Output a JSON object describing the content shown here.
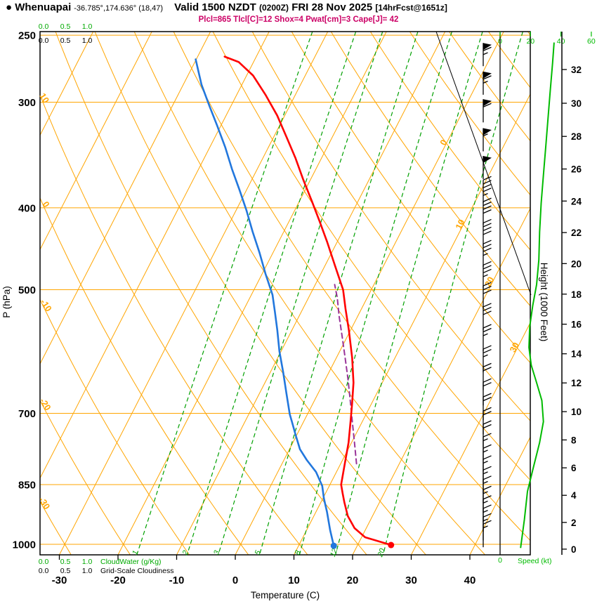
{
  "header": {
    "bullet": "●",
    "station": "Whenuapai",
    "coords": "-36.785°,174.636° (18,47)",
    "valid_label": "Valid 1500 NZDT",
    "valid_z": "(0200Z)",
    "valid_date": "FRI 28 Nov 2025",
    "fcst_tag": "[14hrFcst@1651z]",
    "params": "Plcl=865 Tlcl[C]=12 Shox=4 Pwat[cm]=3 Cape[J]= 42"
  },
  "colors": {
    "grid_orange": "#FFA500",
    "mixing_green": "#00A000",
    "cloud_green": "#00AA00",
    "speed_green": "#00BB00",
    "temperature_red": "#FF0000",
    "dewpoint_blue": "#2277DD",
    "parcel_purple": "#993399",
    "params_magenta": "#CC0066",
    "axis_black": "#000000"
  },
  "axes": {
    "pressure_label": "P (hPa)",
    "temperature_label": "Temperature (C)",
    "height_label": "Height (1000 Feet)",
    "speed_label": "Speed (kt)",
    "cloudwater_label": "CloudWater (g/Kg)",
    "cloudiness_label": "Grid-Scale Cloudiness"
  },
  "chart_data": {
    "type": "skewt-log-p-sounding",
    "pressure_ticks_hpa": [
      250,
      300,
      400,
      500,
      700,
      850,
      1000
    ],
    "temperature_ticks_c": [
      -30,
      -20,
      -10,
      0,
      10,
      20,
      30,
      40
    ],
    "height_ticks_kft": [
      0,
      2,
      4,
      6,
      8,
      10,
      12,
      14,
      16,
      18,
      20,
      22,
      24,
      26,
      28,
      30,
      32
    ],
    "speed_ticks_kt": [
      0,
      20,
      40,
      60
    ],
    "cloud_scale_ticks": [
      "0.0",
      "0.5",
      "1.0"
    ],
    "isotherm_inline_labels": [
      {
        "value": 0,
        "p": 336
      },
      {
        "value": 10,
        "p": 420
      },
      {
        "value": 20,
        "p": 491
      },
      {
        "value": 30,
        "p": 587
      }
    ],
    "dry_adiabat_inline_labels": [
      {
        "value": 10,
        "p": 298
      },
      {
        "value": 0,
        "p": 398
      },
      {
        "value": -10,
        "p": 524
      },
      {
        "value": -20,
        "p": 686
      },
      {
        "value": -30,
        "p": 898
      }
    ],
    "mixing_ratio_lines_gkg": [
      1,
      2,
      3,
      5,
      8,
      12,
      20
    ],
    "temperature_profile_c": [
      [
        1002,
        25.7
      ],
      [
        981,
        20.6
      ],
      [
        957,
        18.0
      ],
      [
        926,
        15.8
      ],
      [
        892,
        14.0
      ],
      [
        870,
        12.9
      ],
      [
        850,
        11.9
      ],
      [
        803,
        10.7
      ],
      [
        758,
        9.5
      ],
      [
        716,
        8.0
      ],
      [
        682,
        6.7
      ],
      [
        644,
        5.1
      ],
      [
        602,
        2.7
      ],
      [
        558,
        -0.3
      ],
      [
        527,
        -2.7
      ],
      [
        500,
        -4.8
      ],
      [
        470,
        -8.1
      ],
      [
        439,
        -11.7
      ],
      [
        415,
        -14.8
      ],
      [
        392,
        -18.0
      ],
      [
        370,
        -21.3
      ],
      [
        349,
        -24.5
      ],
      [
        330,
        -27.8
      ],
      [
        311,
        -31.3
      ],
      [
        294,
        -35.1
      ],
      [
        279,
        -38.9
      ],
      [
        269,
        -42.5
      ],
      [
        265,
        -45.4
      ]
    ],
    "dewpoint_profile_c": [
      [
        1004,
        16.0
      ],
      [
        962,
        14.0
      ],
      [
        916,
        11.9
      ],
      [
        883,
        10.2
      ],
      [
        853,
        8.8
      ],
      [
        821,
        6.5
      ],
      [
        795,
        3.9
      ],
      [
        772,
        1.8
      ],
      [
        744,
        -0.1
      ],
      [
        716,
        -2.0
      ],
      [
        702,
        -3.0
      ],
      [
        663,
        -5.4
      ],
      [
        626,
        -7.8
      ],
      [
        591,
        -10.3
      ],
      [
        558,
        -12.5
      ],
      [
        531,
        -14.5
      ],
      [
        507,
        -16.4
      ],
      [
        479,
        -19.4
      ],
      [
        452,
        -22.3
      ],
      [
        427,
        -25.3
      ],
      [
        403,
        -28.2
      ],
      [
        381,
        -31.2
      ],
      [
        360,
        -34.3
      ],
      [
        339,
        -37.4
      ],
      [
        320,
        -40.6
      ],
      [
        303,
        -43.7
      ],
      [
        286,
        -46.9
      ],
      [
        274,
        -48.9
      ],
      [
        267,
        -50.1
      ]
    ],
    "parcel_path_c": [
      [
        803,
        12.7
      ],
      [
        758,
        10.5
      ],
      [
        716,
        8.3
      ],
      [
        676,
        6.1
      ],
      [
        637,
        3.8
      ],
      [
        602,
        1.5
      ],
      [
        569,
        -0.8
      ],
      [
        537,
        -3.2
      ],
      [
        511,
        -5.1
      ],
      [
        493,
        -6.7
      ]
    ],
    "surface_dots": {
      "temperature": [
        1002,
        25.7
      ],
      "dewpoint": [
        1004,
        16.0
      ]
    },
    "wind_barbs_kt": [
      [
        272,
        65
      ],
      [
        294,
        65
      ],
      [
        317,
        60
      ],
      [
        343,
        55
      ],
      [
        370,
        50
      ],
      [
        395,
        45
      ],
      [
        419,
        40
      ],
      [
        444,
        40
      ],
      [
        470,
        35
      ],
      [
        498,
        35
      ],
      [
        527,
        30
      ],
      [
        558,
        30
      ],
      [
        591,
        25
      ],
      [
        626,
        25
      ],
      [
        657,
        20
      ],
      [
        685,
        20
      ],
      [
        713,
        20
      ],
      [
        741,
        20
      ],
      [
        768,
        20
      ],
      [
        795,
        15
      ],
      [
        820,
        15
      ],
      [
        845,
        15
      ],
      [
        870,
        15
      ],
      [
        893,
        15
      ],
      [
        918,
        15
      ],
      [
        942,
        15
      ],
      [
        966,
        15
      ],
      [
        989,
        15
      ],
      [
        1008,
        15
      ]
    ],
    "wind_speed_profile_kt": [
      [
        1010,
        13.5
      ],
      [
        935,
        16
      ],
      [
        866,
        18
      ],
      [
        810,
        22
      ],
      [
        758,
        26
      ],
      [
        716,
        28.5
      ],
      [
        676,
        27.5
      ],
      [
        644,
        24
      ],
      [
        614,
        20.5
      ],
      [
        585,
        19
      ],
      [
        553,
        19.5
      ],
      [
        522,
        21.5
      ],
      [
        493,
        24
      ],
      [
        461,
        25.5
      ],
      [
        427,
        26
      ],
      [
        395,
        27
      ],
      [
        366,
        28.5
      ],
      [
        339,
        30
      ],
      [
        314,
        31.5
      ],
      [
        291,
        33
      ],
      [
        270,
        34.5
      ],
      [
        255,
        35.5
      ]
    ]
  }
}
